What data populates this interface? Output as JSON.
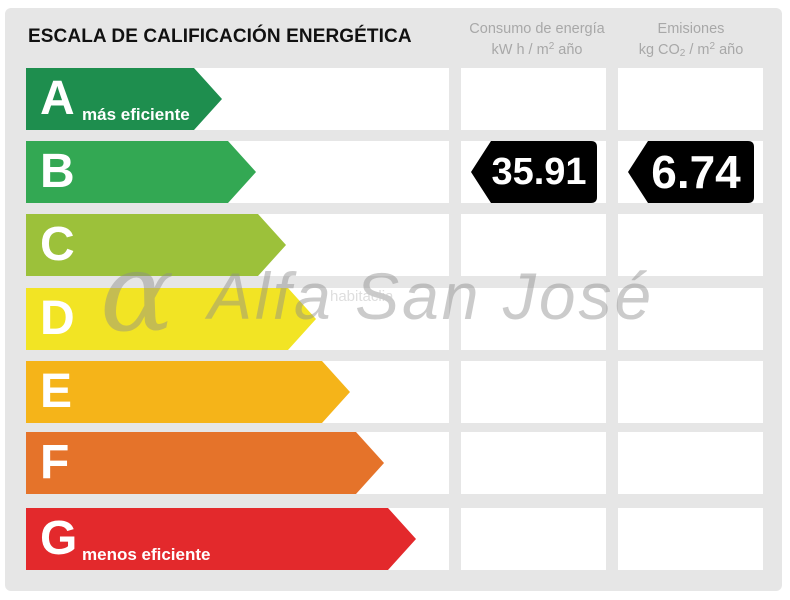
{
  "title": "ESCALA DE CALIFICACIÓN ENERGÉTICA",
  "columns": {
    "consumo": {
      "line1": "Consumo de energía",
      "line2_pre": "kW h / m",
      "line2_sup": "2",
      "line2_post": " año"
    },
    "emisiones": {
      "line1": "Emisiones",
      "line2_pre": "kg CO",
      "line2_sub": "2",
      "line2_mid": " / m",
      "line2_sup": "2",
      "line2_post": " año"
    }
  },
  "ratings": [
    {
      "letter": "A",
      "sublabel": "más eficiente",
      "color": "#1e8e4e"
    },
    {
      "letter": "B",
      "sublabel": "",
      "color": "#33a853"
    },
    {
      "letter": "C",
      "sublabel": "",
      "color": "#9cc13a"
    },
    {
      "letter": "D",
      "sublabel": "",
      "color": "#f2e424"
    },
    {
      "letter": "E",
      "sublabel": "",
      "color": "#f5b419"
    },
    {
      "letter": "F",
      "sublabel": "",
      "color": "#e5732a"
    },
    {
      "letter": "G",
      "sublabel": "menos eficiente",
      "color": "#e3292c"
    }
  ],
  "current_rating": "B",
  "consumo_value": "35.91",
  "emisiones_value": "6.74",
  "watermark": {
    "alpha": "α",
    "text": "Alfa San José",
    "small": "habitaclia"
  }
}
